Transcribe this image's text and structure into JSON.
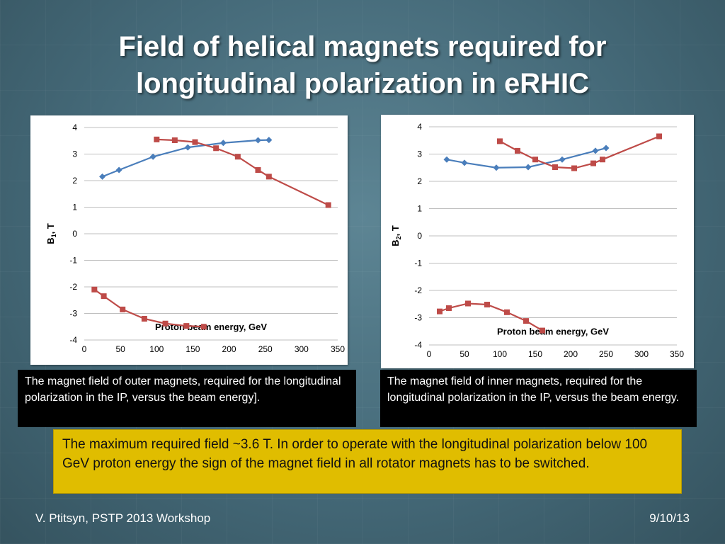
{
  "slide": {
    "title_line1": "Field of helical magnets required for",
    "title_line2": "longitudinal polarization in eRHIC",
    "caption_left": "The magnet field of outer magnets, required for the longitudinal polarization in the IP, versus the beam energy].",
    "caption_right": "The magnet field of inner magnets, required for the longitudinal polarization in the IP, versus the beam energy.",
    "note": "The maximum required field ~3.6 T. In order to operate with the longitudinal polarization below 100 GeV proton energy the sign of the magnet field in all rotator magnets has to be switched.",
    "footer_left": "V. Ptitsyn, PSTP 2013 Workshop",
    "footer_right": "9/10/13"
  },
  "chart_data": [
    {
      "type": "line",
      "xlabel": "Proton beam energy, GeV",
      "ylabel_main": "B",
      "ylabel_sub": "1",
      "ylabel_suffix": ", T",
      "xlim": [
        0,
        350
      ],
      "ylim": [
        -4,
        4
      ],
      "xticks": [
        0,
        50,
        100,
        150,
        200,
        250,
        300,
        350
      ],
      "yticks": [
        4,
        3,
        2,
        1,
        0,
        -1,
        -2,
        -3,
        -4
      ],
      "grid": true,
      "series": [
        {
          "color": "#4a7ebb",
          "marker": "diamond",
          "points": [
            [
              25,
              2.15
            ],
            [
              48,
              2.4
            ],
            [
              95,
              2.9
            ],
            [
              143,
              3.25
            ],
            [
              192,
              3.42
            ],
            [
              240,
              3.52
            ],
            [
              255,
              3.53
            ]
          ]
        },
        {
          "color": "#be4b48",
          "marker": "square",
          "points": [
            [
              100,
              3.55
            ],
            [
              125,
              3.52
            ],
            [
              153,
              3.45
            ],
            [
              182,
              3.22
            ],
            [
              212,
              2.9
            ],
            [
              240,
              2.4
            ],
            [
              255,
              2.15
            ],
            [
              337,
              1.08
            ]
          ]
        },
        {
          "color": "#be4b48",
          "marker": "square",
          "points": [
            [
              14,
              -2.1
            ],
            [
              27,
              -2.35
            ],
            [
              53,
              -2.85
            ],
            [
              83,
              -3.2
            ],
            [
              112,
              -3.38
            ],
            [
              141,
              -3.47
            ],
            [
              165,
              -3.5
            ]
          ]
        }
      ]
    },
    {
      "type": "line",
      "xlabel": "Proton beam energy, GeV",
      "ylabel_main": "B",
      "ylabel_sub": "2",
      "ylabel_suffix": ", T",
      "xlim": [
        0,
        350
      ],
      "ylim": [
        -4,
        4
      ],
      "xticks": [
        0,
        50,
        100,
        150,
        200,
        250,
        300,
        350
      ],
      "yticks": [
        4,
        3,
        2,
        1,
        0,
        -1,
        -2,
        -3,
        -4
      ],
      "grid": true,
      "series": [
        {
          "color": "#4a7ebb",
          "marker": "diamond",
          "points": [
            [
              25,
              2.8
            ],
            [
              50,
              2.68
            ],
            [
              95,
              2.5
            ],
            [
              140,
              2.52
            ],
            [
              188,
              2.8
            ],
            [
              235,
              3.12
            ],
            [
              250,
              3.22
            ]
          ]
        },
        {
          "color": "#be4b48",
          "marker": "square",
          "points": [
            [
              100,
              3.47
            ],
            [
              125,
              3.12
            ],
            [
              150,
              2.8
            ],
            [
              178,
              2.52
            ],
            [
              205,
              2.48
            ],
            [
              232,
              2.66
            ],
            [
              245,
              2.8
            ],
            [
              325,
              3.65
            ]
          ]
        },
        {
          "color": "#be4b48",
          "marker": "square",
          "points": [
            [
              15,
              -2.77
            ],
            [
              28,
              -2.65
            ],
            [
              55,
              -2.48
            ],
            [
              82,
              -2.52
            ],
            [
              110,
              -2.8
            ],
            [
              137,
              -3.12
            ],
            [
              160,
              -3.47
            ]
          ]
        }
      ]
    }
  ]
}
